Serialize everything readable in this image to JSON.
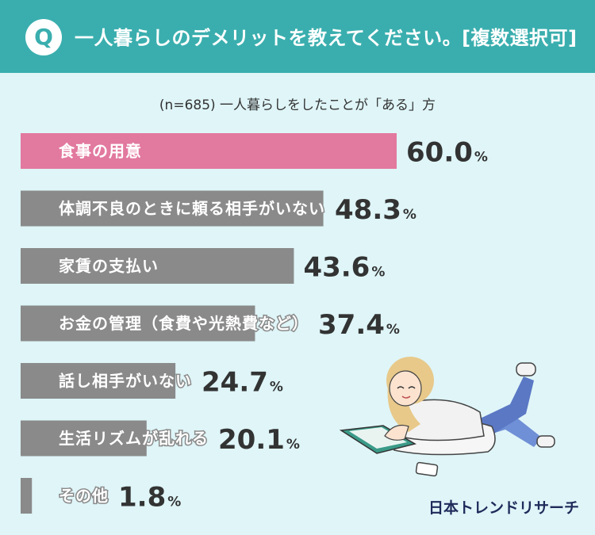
{
  "header": {
    "badge": "Q",
    "question": "一人暮らしのデメリットを教えてください。[複数選択可]"
  },
  "subtitle": "(n=685) 一人暮らしをしたことが「ある」方",
  "brand": "日本トレンドリサーチ",
  "colors": {
    "header": "#3aaeae",
    "background": "#dff5f8",
    "highlight_bar": "#e2799e",
    "bar": "#8a8a8a"
  },
  "chart_data": {
    "type": "bar",
    "orientation": "horizontal",
    "categories": [
      "食事の用意",
      "体調不良のときに頼る相手がいない",
      "家賃の支払い",
      "お金の管理（食費や光熱費など）",
      "話し相手がいない",
      "生活リズムが乱れる",
      "その他"
    ],
    "values": [
      60.0,
      48.3,
      43.6,
      37.4,
      24.7,
      20.1,
      1.8
    ],
    "value_labels": [
      "60.0",
      "48.3",
      "43.6",
      "37.4",
      "24.7",
      "20.1",
      "1.8"
    ],
    "unit": "%",
    "highlight_index": 0,
    "xlim": [
      0,
      100
    ]
  }
}
